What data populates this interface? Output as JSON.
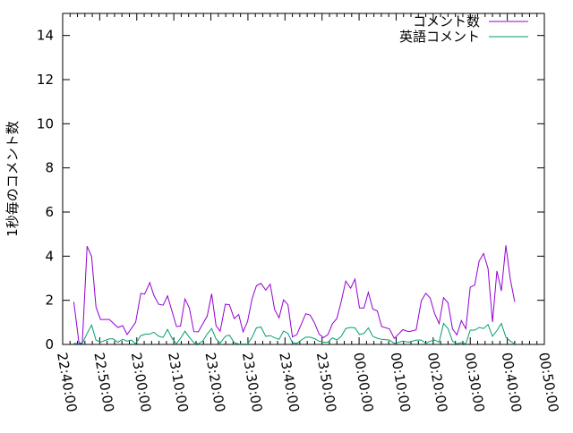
{
  "chart_data": {
    "type": "line",
    "title": "",
    "xlabel": "",
    "ylabel": "1秒毎のコメント数",
    "xlim": [
      "22:40:00",
      "00:50:00"
    ],
    "ylim": [
      0,
      15
    ],
    "x_ticks": [
      "22:40:00",
      "22:50:00",
      "23:00:00",
      "23:10:00",
      "23:20:00",
      "23:30:00",
      "23:40:00",
      "23:50:00",
      "00:00:00",
      "00:10:00",
      "00:20:00",
      "00:30:00",
      "00:40:00",
      "00:50:00"
    ],
    "y_ticks": [
      "0",
      "2",
      "4",
      "6",
      "8",
      "10",
      "12",
      "14"
    ],
    "grid": false,
    "legend_placement": "top-right",
    "series": [
      {
        "name": "コメント数",
        "color": "#9400d3",
        "points": [
          [
            "22:43:00",
            1.93
          ],
          [
            "22:44:24",
            0.08
          ],
          [
            "22:45:18",
            0.05
          ],
          [
            "22:46:36",
            4.45
          ],
          [
            "22:47:48",
            3.98
          ],
          [
            "22:49:00",
            1.7
          ],
          [
            "22:50:12",
            1.13
          ],
          [
            "22:52:36",
            1.13
          ],
          [
            "22:54:54",
            0.77
          ],
          [
            "22:56:12",
            0.85
          ],
          [
            "22:57:24",
            0.45
          ],
          [
            "22:59:42",
            1.0
          ],
          [
            "23:01:06",
            2.32
          ],
          [
            "23:02:06",
            2.28
          ],
          [
            "23:03:30",
            2.8
          ],
          [
            "23:04:36",
            2.23
          ],
          [
            "23:05:54",
            1.82
          ],
          [
            "23:07:06",
            1.78
          ],
          [
            "23:08:18",
            2.2
          ],
          [
            "23:10:42",
            0.81
          ],
          [
            "23:11:48",
            0.83
          ],
          [
            "23:13:00",
            2.06
          ],
          [
            "23:14:12",
            1.65
          ],
          [
            "23:15:24",
            0.58
          ],
          [
            "23:16:36",
            0.57
          ],
          [
            "23:19:00",
            1.28
          ],
          [
            "23:20:12",
            2.29
          ],
          [
            "23:21:24",
            0.85
          ],
          [
            "23:22:30",
            0.6
          ],
          [
            "23:23:54",
            1.82
          ],
          [
            "23:25:00",
            1.8
          ],
          [
            "23:26:18",
            1.17
          ],
          [
            "23:27:30",
            1.36
          ],
          [
            "23:28:42",
            0.57
          ],
          [
            "23:29:54",
            1.04
          ],
          [
            "23:31:06",
            2.06
          ],
          [
            "23:32:18",
            2.66
          ],
          [
            "23:33:30",
            2.77
          ],
          [
            "23:34:48",
            2.46
          ],
          [
            "23:36:00",
            2.73
          ],
          [
            "23:37:12",
            1.58
          ],
          [
            "23:38:24",
            1.21
          ],
          [
            "23:39:36",
            2.02
          ],
          [
            "23:40:48",
            1.8
          ],
          [
            "23:42:00",
            0.34
          ],
          [
            "23:43:12",
            0.45
          ],
          [
            "23:45:36",
            1.39
          ],
          [
            "23:46:48",
            1.33
          ],
          [
            "23:48:00",
            0.97
          ],
          [
            "23:49:12",
            0.47
          ],
          [
            "23:50:24",
            0.31
          ],
          [
            "23:51:36",
            0.45
          ],
          [
            "23:52:48",
            0.94
          ],
          [
            "23:54:00",
            1.17
          ],
          [
            "23:55:12",
            1.96
          ],
          [
            "23:56:24",
            2.87
          ],
          [
            "23:57:42",
            2.55
          ],
          [
            "23:58:54",
            2.96
          ],
          [
            "00:00:06",
            1.65
          ],
          [
            "00:01:18",
            1.65
          ],
          [
            "00:02:30",
            2.36
          ],
          [
            "00:03:42",
            1.6
          ],
          [
            "00:04:54",
            1.52
          ],
          [
            "00:06:06",
            0.81
          ],
          [
            "00:08:12",
            0.7
          ],
          [
            "00:09:30",
            0.27
          ],
          [
            "00:11:48",
            0.67
          ],
          [
            "00:13:24",
            0.58
          ],
          [
            "00:15:24",
            0.66
          ],
          [
            "00:16:48",
            1.98
          ],
          [
            "00:18:00",
            2.32
          ],
          [
            "00:19:12",
            2.1
          ],
          [
            "00:20:24",
            1.39
          ],
          [
            "00:21:36",
            0.94
          ],
          [
            "00:22:48",
            2.12
          ],
          [
            "00:24:00",
            1.89
          ],
          [
            "00:25:12",
            0.71
          ],
          [
            "00:26:24",
            0.43
          ],
          [
            "00:27:36",
            1.08
          ],
          [
            "00:28:48",
            0.71
          ],
          [
            "00:30:00",
            2.59
          ],
          [
            "00:31:12",
            2.69
          ],
          [
            "00:32:24",
            3.78
          ],
          [
            "00:33:36",
            4.12
          ],
          [
            "00:34:48",
            3.44
          ],
          [
            "00:36:00",
            1.01
          ],
          [
            "00:37:12",
            3.33
          ],
          [
            "00:38:24",
            2.43
          ],
          [
            "00:39:36",
            4.49
          ],
          [
            "00:40:48",
            2.97
          ],
          [
            "00:42:00",
            1.93
          ]
        ]
      },
      {
        "name": "英語コメント",
        "color": "#009e73",
        "points": [
          [
            "22:43:00",
            0.05
          ],
          [
            "22:44:24",
            0.03
          ],
          [
            "22:45:18",
            0.05
          ],
          [
            "22:46:36",
            0.5
          ],
          [
            "22:47:48",
            0.88
          ],
          [
            "22:49:00",
            0.2
          ],
          [
            "22:50:12",
            0.1
          ],
          [
            "22:52:36",
            0.25
          ],
          [
            "22:53:36",
            0.25
          ],
          [
            "22:54:54",
            0.1
          ],
          [
            "22:56:12",
            0.23
          ],
          [
            "22:57:24",
            0.15
          ],
          [
            "22:58:30",
            0.2
          ],
          [
            "22:59:42",
            0.03
          ],
          [
            "23:01:06",
            0.4
          ],
          [
            "23:02:30",
            0.47
          ],
          [
            "23:03:30",
            0.47
          ],
          [
            "23:04:36",
            0.55
          ],
          [
            "23:05:54",
            0.37
          ],
          [
            "23:07:06",
            0.32
          ],
          [
            "23:08:18",
            0.68
          ],
          [
            "23:09:30",
            0.28
          ],
          [
            "23:10:42",
            0.03
          ],
          [
            "23:11:48",
            0.28
          ],
          [
            "23:13:00",
            0.6
          ],
          [
            "23:14:12",
            0.32
          ],
          [
            "23:15:24",
            0.08
          ],
          [
            "23:16:36",
            0.03
          ],
          [
            "23:17:48",
            0.15
          ],
          [
            "23:19:00",
            0.47
          ],
          [
            "23:20:12",
            0.72
          ],
          [
            "23:21:24",
            0.25
          ],
          [
            "23:22:30",
            0.06
          ],
          [
            "23:23:54",
            0.37
          ],
          [
            "23:25:00",
            0.42
          ],
          [
            "23:26:18",
            0.08
          ],
          [
            "23:27:30",
            0.02
          ],
          [
            "23:29:54",
            0.02
          ],
          [
            "23:31:06",
            0.32
          ],
          [
            "23:32:18",
            0.75
          ],
          [
            "23:33:30",
            0.79
          ],
          [
            "23:34:48",
            0.37
          ],
          [
            "23:36:00",
            0.4
          ],
          [
            "23:37:12",
            0.3
          ],
          [
            "23:38:24",
            0.23
          ],
          [
            "23:39:36",
            0.61
          ],
          [
            "23:40:48",
            0.5
          ],
          [
            "23:42:00",
            0.08
          ],
          [
            "23:43:12",
            0.05
          ],
          [
            "23:44:24",
            0.2
          ],
          [
            "23:45:36",
            0.33
          ],
          [
            "23:46:48",
            0.33
          ],
          [
            "23:48:00",
            0.26
          ],
          [
            "23:49:12",
            0.15
          ],
          [
            "23:50:24",
            0.1
          ],
          [
            "23:51:36",
            0.1
          ],
          [
            "23:52:48",
            0.3
          ],
          [
            "23:54:00",
            0.2
          ],
          [
            "23:55:12",
            0.37
          ],
          [
            "23:56:24",
            0.72
          ],
          [
            "23:57:42",
            0.77
          ],
          [
            "23:58:54",
            0.75
          ],
          [
            "00:00:06",
            0.45
          ],
          [
            "00:01:18",
            0.5
          ],
          [
            "00:02:30",
            0.75
          ],
          [
            "00:03:42",
            0.37
          ],
          [
            "00:04:54",
            0.28
          ],
          [
            "00:06:06",
            0.23
          ],
          [
            "00:08:12",
            0.2
          ],
          [
            "00:09:30",
            0.05
          ],
          [
            "00:11:48",
            0.15
          ],
          [
            "00:13:24",
            0.1
          ],
          [
            "00:15:24",
            0.2
          ],
          [
            "00:16:48",
            0.2
          ],
          [
            "00:18:00",
            0.05
          ],
          [
            "00:19:12",
            0.15
          ],
          [
            "00:20:24",
            0.2
          ],
          [
            "00:21:36",
            0.1
          ],
          [
            "00:22:48",
            0.95
          ],
          [
            "00:24:00",
            0.72
          ],
          [
            "00:25:12",
            0.15
          ],
          [
            "00:26:24",
            0.03
          ],
          [
            "00:27:36",
            0.08
          ],
          [
            "00:28:48",
            0.03
          ],
          [
            "00:30:00",
            0.65
          ],
          [
            "00:31:12",
            0.65
          ],
          [
            "00:32:24",
            0.77
          ],
          [
            "00:33:36",
            0.72
          ],
          [
            "00:34:48",
            0.9
          ],
          [
            "00:36:00",
            0.37
          ],
          [
            "00:37:12",
            0.63
          ],
          [
            "00:38:24",
            0.95
          ],
          [
            "00:39:36",
            0.33
          ],
          [
            "00:40:48",
            0.15
          ],
          [
            "00:42:00",
            0.02
          ]
        ]
      }
    ]
  }
}
